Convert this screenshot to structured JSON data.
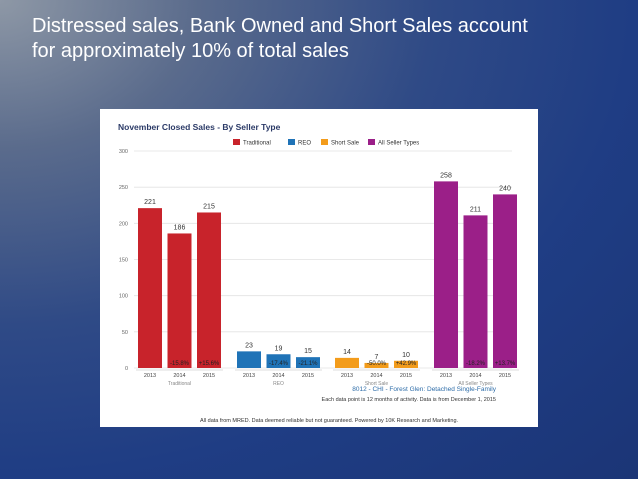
{
  "slide": {
    "title_line1": "Distressed sales, Bank Owned and Short Sales account",
    "title_line2": "for approximately 10% of total sales"
  },
  "chart_data": {
    "type": "bar",
    "title": "November Closed Sales - By Seller Type",
    "ylim": [
      0,
      300
    ],
    "yticks": [
      0,
      50,
      100,
      150,
      200,
      250,
      300
    ],
    "grid": true,
    "legend_position": "top-right",
    "legend": [
      {
        "name": "Traditional",
        "color": "#c8232b"
      },
      {
        "name": "REO",
        "color": "#1f73b7"
      },
      {
        "name": "Short Sale",
        "color": "#f39c1b"
      },
      {
        "name": "All Seller Types",
        "color": "#9b1f88"
      }
    ],
    "groups": [
      {
        "name": "Traditional",
        "color": "#c8232b",
        "categories": [
          "2013",
          "2014",
          "2015"
        ],
        "values": [
          221,
          186,
          215
        ],
        "changes": [
          "",
          "-15.8%",
          "+15.6%"
        ]
      },
      {
        "name": "REO",
        "color": "#1f73b7",
        "categories": [
          "2013",
          "2014",
          "2015"
        ],
        "values": [
          23,
          19,
          15
        ],
        "changes": [
          "",
          "-17.4%",
          "-21.1%"
        ]
      },
      {
        "name": "Short Sale",
        "color": "#f39c1b",
        "categories": [
          "2013",
          "2014",
          "2015"
        ],
        "values": [
          14,
          7,
          10
        ],
        "changes": [
          "",
          "-50.0%",
          "+42.9%"
        ]
      },
      {
        "name": "All Seller Types",
        "color": "#9b1f88",
        "categories": [
          "2013",
          "2014",
          "2015"
        ],
        "values": [
          258,
          211,
          240
        ],
        "changes": [
          "",
          "-18.2%",
          "+13.7%"
        ]
      }
    ],
    "subtitle": "8012 - CHI - Forest Glen: Detached Single-Family",
    "note_period": "Each data point is 12 months of activity. Data is from December 1, 2015",
    "disclaimer": "All data from MRED. Data deemed reliable but not guaranteed. Powered by 10K Research and Marketing."
  }
}
